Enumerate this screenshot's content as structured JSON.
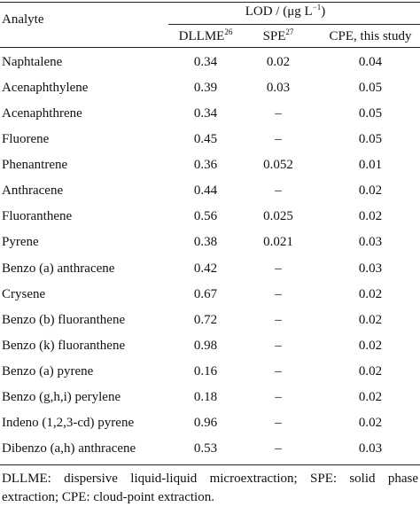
{
  "table": {
    "header": {
      "analyte": "Analyte",
      "lod": {
        "text": "LOD / (μg L",
        "sup": "−1",
        "after": ")"
      },
      "columns": [
        {
          "text": "DLLME",
          "sup": "26"
        },
        {
          "text": "SPE",
          "sup": "27"
        },
        {
          "text": "CPE, this study"
        }
      ]
    },
    "rows": [
      [
        "Naphtalene",
        "0.34",
        "0.02",
        "0.04"
      ],
      [
        "Acenaphthylene",
        "0.39",
        "0.03",
        "0.05"
      ],
      [
        "Acenaphthrene",
        "0.34",
        "–",
        "0.05"
      ],
      [
        "Fluorene",
        "0.45",
        "–",
        "0.05"
      ],
      [
        "Phenantrene",
        "0.36",
        "0.052",
        "0.01"
      ],
      [
        "Anthracene",
        "0.44",
        "–",
        "0.02"
      ],
      [
        "Fluoranthene",
        "0.56",
        "0.025",
        "0.02"
      ],
      [
        "Pyrene",
        "0.38",
        "0.021",
        "0.03"
      ],
      [
        "Benzo (a) anthracene",
        "0.42",
        "–",
        "0.03"
      ],
      [
        "Crysene",
        "0.67",
        "–",
        "0.02"
      ],
      [
        "Benzo (b) fluoranthene",
        "0.72",
        "–",
        "0.02"
      ],
      [
        "Benzo (k) fluoranthene",
        "0.98",
        "–",
        "0.02"
      ],
      [
        "Benzo (a) pyrene",
        "0.16",
        "–",
        "0.02"
      ],
      [
        "Benzo (g,h,i) perylene",
        "0.18",
        "–",
        "0.02"
      ],
      [
        "Indeno (1,2,3-cd) pyrene",
        "0.96",
        "–",
        "0.02"
      ],
      [
        "Dibenzo (a,h) anthracene",
        "0.53",
        "–",
        "0.03"
      ]
    ],
    "footnote": "DLLME: dispersive liquid-liquid microextraction; SPE: solid phase extraction; CPE: cloud-point extraction."
  }
}
